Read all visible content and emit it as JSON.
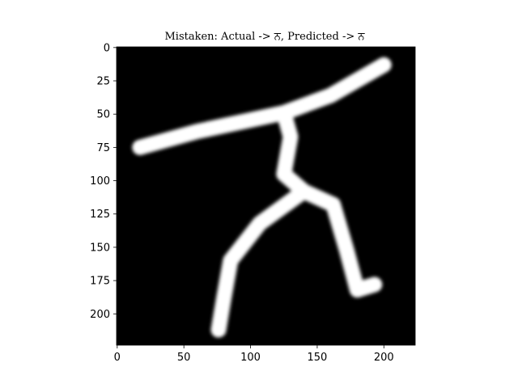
{
  "chart_data": {
    "type": "image",
    "title": "Mistaken: Actual -> ਨ, Predicted -> ਨ",
    "x_ticks": [
      0,
      50,
      100,
      150,
      200
    ],
    "y_ticks": [
      0,
      25,
      50,
      75,
      100,
      125,
      150,
      175,
      200
    ],
    "xlim": [
      -0.5,
      223.5
    ],
    "ylim": [
      223.5,
      -0.5
    ],
    "colormap": "gray",
    "background": "#000000",
    "foreground": "#ffffff",
    "image_strokes": [
      {
        "name": "top-bar",
        "points": [
          [
            17,
            75
          ],
          [
            60,
            63
          ],
          [
            125,
            49
          ],
          [
            160,
            36
          ],
          [
            200,
            13
          ]
        ]
      },
      {
        "name": "upper-stem",
        "points": [
          [
            125,
            49
          ],
          [
            130,
            67
          ],
          [
            125,
            95
          ],
          [
            140,
            108
          ]
        ]
      },
      {
        "name": "left-leg",
        "points": [
          [
            140,
            108
          ],
          [
            107,
            132
          ],
          [
            85,
            160
          ],
          [
            80,
            188
          ],
          [
            76,
            212
          ]
        ]
      },
      {
        "name": "right-leg",
        "points": [
          [
            140,
            108
          ],
          [
            162,
            118
          ],
          [
            172,
            152
          ],
          [
            180,
            182
          ],
          [
            193,
            178
          ]
        ]
      }
    ]
  }
}
